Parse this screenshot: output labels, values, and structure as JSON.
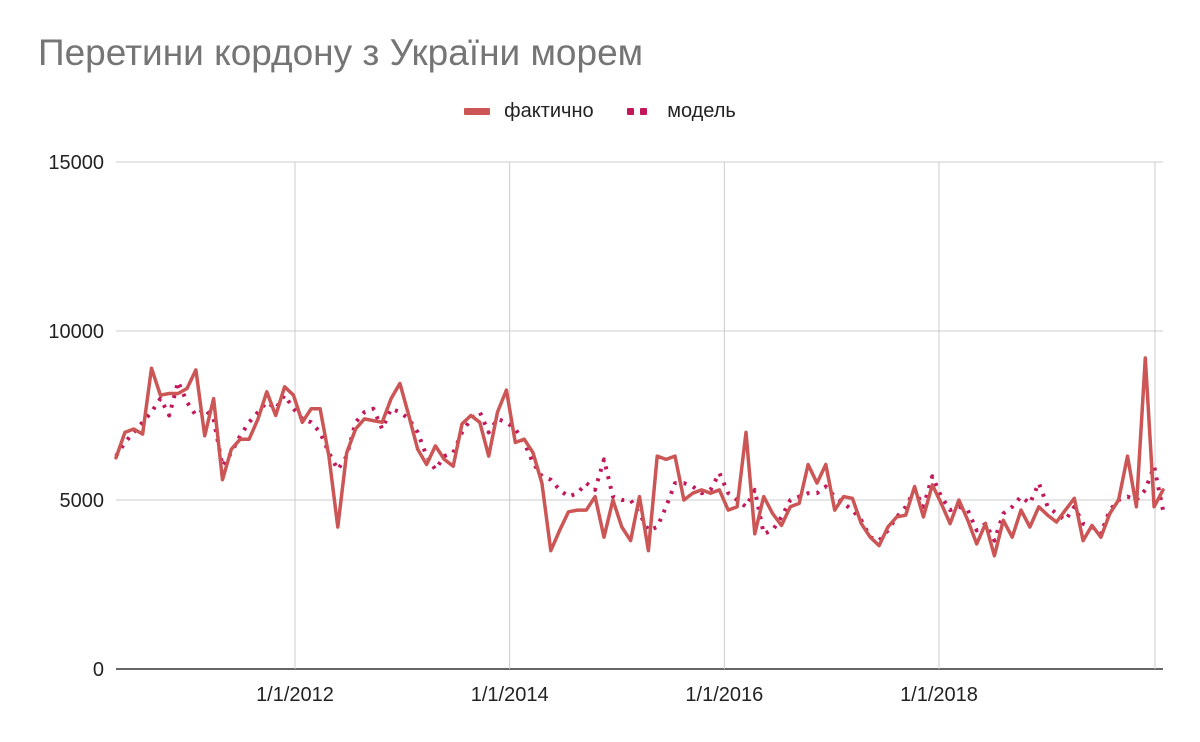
{
  "chart_data": {
    "type": "line",
    "title": "Перетини кордону з України морем",
    "xlabel": "",
    "ylabel": "",
    "ylim": [
      0,
      15000
    ],
    "y_ticks": [
      "0",
      "5000",
      "10000",
      "15000"
    ],
    "x_ticks": [
      "1/1/2012",
      "1/1/2014",
      "1/1/2016",
      "1/1/2018"
    ],
    "x_start": "2010-04",
    "x_step": "month",
    "legend_position": "top",
    "grid": true,
    "series": [
      {
        "name": "фактично",
        "color": "#cc5555",
        "style": "solid",
        "values": [
          6250,
          7000,
          7100,
          6950,
          8900,
          8100,
          8150,
          8150,
          8300,
          8850,
          6900,
          8000,
          5600,
          6500,
          6800,
          6800,
          7400,
          8200,
          7500,
          8350,
          8100,
          7300,
          7700,
          7700,
          6300,
          4200,
          6400,
          7100,
          7400,
          7350,
          7300,
          8000,
          8450,
          7500,
          6500,
          6050,
          6600,
          6200,
          6000,
          7250,
          7500,
          7300,
          6300,
          7600,
          8250,
          6700,
          6800,
          6400,
          5500,
          3500,
          4100,
          4650,
          4700,
          4700,
          5100,
          3900,
          5000,
          4200,
          3800,
          5100,
          3500,
          6300,
          6200,
          6300,
          5000,
          5200,
          5300,
          5200,
          5300,
          4700,
          4800,
          7000,
          4000,
          5100,
          4600,
          4250,
          4800,
          4900,
          6050,
          5500,
          6050,
          4700,
          5100,
          5050,
          4300,
          3900,
          3650,
          4200,
          4500,
          4550,
          5400,
          4500,
          5450,
          4900,
          4300,
          5000,
          4400,
          3700,
          4300,
          3350,
          4400,
          3900,
          4700,
          4200,
          4800,
          4550,
          4350,
          4700,
          5050,
          3800,
          4250,
          3900,
          4600,
          5000,
          6300,
          4800,
          9200,
          4800,
          5300
        ],
        "values_note": ""
      },
      {
        "name": "модель",
        "color": "#c2185b",
        "style": "dotted",
        "values": [
          6300,
          6700,
          7000,
          7300,
          7600,
          8000,
          7500,
          8500,
          7900,
          7500,
          7700,
          7400,
          6000,
          6400,
          6900,
          7300,
          7600,
          7900,
          7700,
          8100,
          7700,
          7400,
          7300,
          7000,
          6400,
          5900,
          6300,
          7300,
          7600,
          7700,
          7100,
          7700,
          7600,
          7400,
          7000,
          6300,
          5900,
          6300,
          6400,
          7000,
          7400,
          7600,
          7000,
          7400,
          7300,
          7100,
          6700,
          6100,
          5700,
          5600,
          5300,
          5100,
          5200,
          5500,
          5300,
          6200,
          5100,
          5000,
          5000,
          4600,
          4100,
          4200,
          4800,
          5500,
          5500,
          5400,
          5200,
          5300,
          5800,
          5200,
          5000,
          4800,
          5300,
          4000,
          4100,
          4500,
          5000,
          5100,
          5200,
          5200,
          5400,
          5100,
          4900,
          4700,
          4400,
          3900,
          3800,
          4100,
          4500,
          4800,
          5300,
          4800,
          5700,
          5100,
          4700,
          4800,
          4700,
          4100,
          4300,
          3800,
          4600,
          4800,
          5100,
          4900,
          5500,
          4800,
          4600,
          4400,
          4800,
          4300,
          4200,
          4000,
          4700,
          5000,
          5100,
          5000,
          5300,
          6000,
          4700
        ]
      }
    ]
  }
}
